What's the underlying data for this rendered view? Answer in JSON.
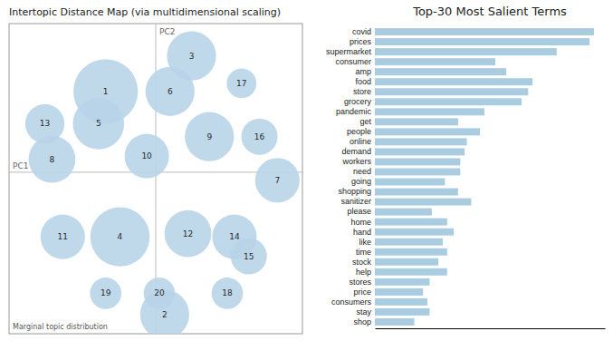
{
  "chart_data": [
    {
      "type": "scatter",
      "title": "Intertopic Distance Map (via multidimensional scaling)",
      "xlabel": "PC1",
      "ylabel": "PC2",
      "annotations": [
        "Marginal topic distribution"
      ],
      "labels": [
        "1",
        "2",
        "3",
        "4",
        "5",
        "6",
        "7",
        "8",
        "9",
        "10",
        "11",
        "12",
        "13",
        "14",
        "15",
        "16",
        "17",
        "18",
        "19",
        "20"
      ],
      "x": [
        -0.28,
        0.05,
        0.2,
        -0.2,
        -0.32,
        0.08,
        0.68,
        -0.58,
        0.3,
        -0.05,
        -0.52,
        0.18,
        -0.62,
        0.44,
        0.52,
        0.58,
        0.48,
        0.4,
        -0.28,
        0.02
      ],
      "values": [
        0.5,
        -0.88,
        0.72,
        -0.4,
        0.3,
        0.5,
        -0.05,
        0.08,
        0.22,
        0.1,
        -0.4,
        -0.38,
        0.3,
        -0.4,
        -0.52,
        0.22,
        0.55,
        -0.75,
        -0.75,
        -0.75
      ],
      "sizes": [
        3800,
        2200,
        2200,
        3200,
        2400,
        2200,
        1800,
        2000,
        2200,
        1800,
        1800,
        2000,
        1400,
        1800,
        1200,
        1200,
        800,
        900,
        900,
        900
      ],
      "color": "#b8d4e8",
      "xlim": [
        -0.82,
        0.82
      ],
      "ylim": [
        -1.0,
        0.92
      ],
      "tick_labels": false
    },
    {
      "type": "bar",
      "orientation": "horizontal",
      "title": "Top-30 Most Salient Terms",
      "categories": [
        "covid",
        "prices",
        "supermarket",
        "consumer",
        "amp",
        "food",
        "store",
        "grocery",
        "pandemic",
        "get",
        "people",
        "online",
        "demand",
        "workers",
        "need",
        "going",
        "shopping",
        "sanitizer",
        "please",
        "home",
        "hand",
        "like",
        "time",
        "stock",
        "help",
        "stores",
        "price",
        "consumers",
        "stay",
        "shop"
      ],
      "values": [
        1.0,
        0.98,
        0.83,
        0.55,
        0.6,
        0.72,
        0.7,
        0.67,
        0.5,
        0.38,
        0.48,
        0.42,
        0.41,
        0.39,
        0.39,
        0.32,
        0.38,
        0.44,
        0.26,
        0.33,
        0.36,
        0.31,
        0.33,
        0.29,
        0.33,
        0.25,
        0.22,
        0.24,
        0.25,
        0.18
      ],
      "color": "#aacce0",
      "xlim": [
        0,
        1.05
      ],
      "tick_labels": "y"
    }
  ]
}
